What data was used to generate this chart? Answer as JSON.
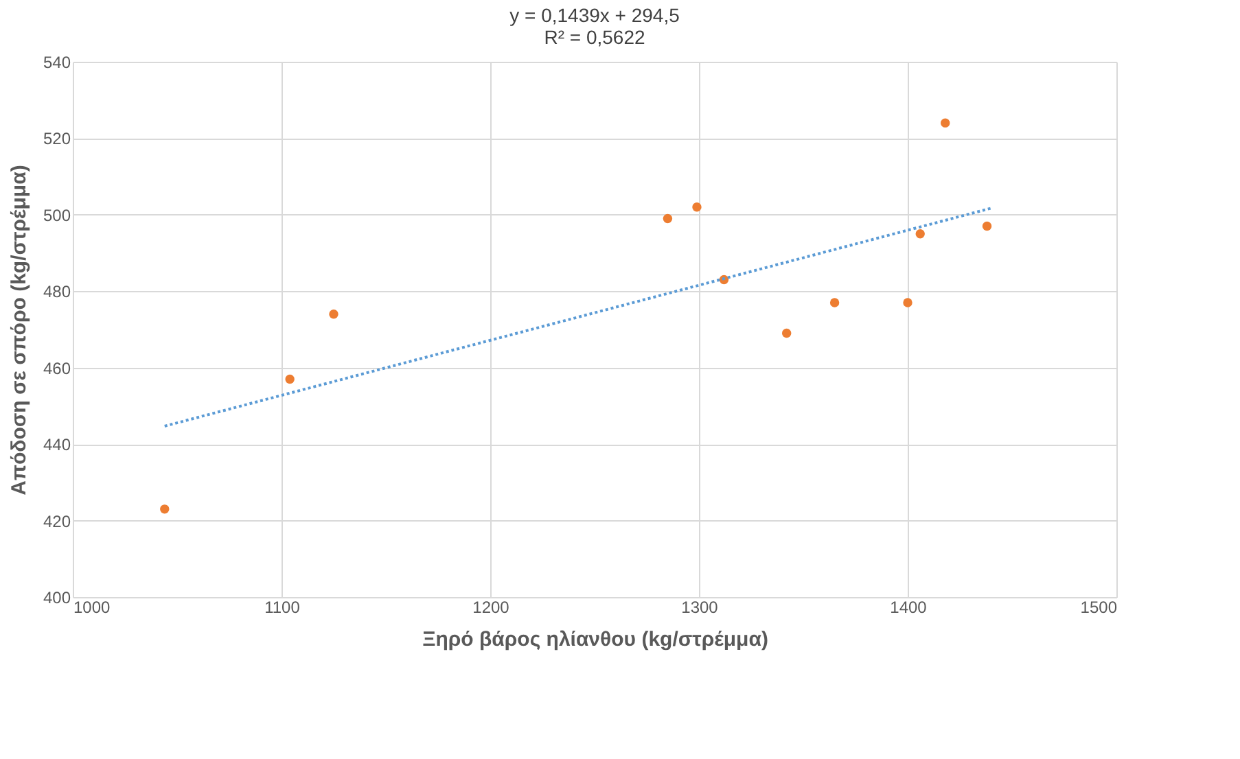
{
  "chart_data": {
    "type": "scatter",
    "xlabel": "Ξηρό βάρος ηλίανθου (kg/στρέμμα)",
    "ylabel": "Απόδοση σε σπόρο (kg/στρέμμα)",
    "annotations": [
      "y = 0,1439x + 294,5",
      "R² = 0,5622"
    ],
    "series": [
      {
        "color": "#ed7d31",
        "marker": "circle",
        "x": [
          1044,
          1104,
          1125,
          1285,
          1299,
          1312,
          1342,
          1365,
          1400,
          1406,
          1418,
          1438
        ],
        "values": [
          423,
          457,
          474,
          499,
          502,
          483,
          469,
          477,
          477,
          495,
          524,
          497
        ]
      },
      {
        "type": "line",
        "color": "#5b9bd5",
        "line_style": "dotted",
        "marker": "none",
        "x": [
          1044,
          1440
        ],
        "values": [
          444.7,
          501.7
        ]
      }
    ],
    "xlim": [
      1000,
      1500
    ],
    "xticks": [
      1000,
      1100,
      1200,
      1300,
      1400,
      1500
    ],
    "ylim": [
      400,
      540
    ],
    "yticks": [
      400,
      420,
      440,
      460,
      480,
      500,
      520,
      540
    ],
    "grid": true
  }
}
